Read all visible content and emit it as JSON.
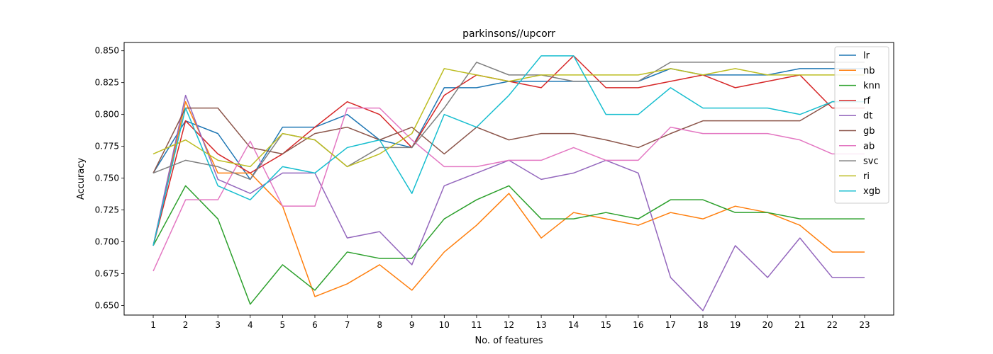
{
  "chart_data": {
    "type": "line",
    "title": "parkinsons//upcorr",
    "xlabel": "No. of features",
    "ylabel": "Accuracy",
    "x": [
      1,
      2,
      3,
      4,
      5,
      6,
      7,
      8,
      9,
      10,
      11,
      12,
      13,
      14,
      15,
      16,
      17,
      18,
      19,
      20,
      21,
      22,
      23
    ],
    "xlim": [
      0.1,
      23.9
    ],
    "ylim": [
      0.6425,
      0.8565
    ],
    "yticks": [
      0.65,
      0.675,
      0.7,
      0.725,
      0.75,
      0.775,
      0.8,
      0.825,
      0.85
    ],
    "ytick_labels": [
      "0.650",
      "0.675",
      "0.700",
      "0.725",
      "0.750",
      "0.775",
      "0.800",
      "0.825",
      "0.850"
    ],
    "grid": false,
    "legend_position": "top-right",
    "series": [
      {
        "name": "lr",
        "color": "#1f77b4",
        "values": [
          0.754,
          0.795,
          0.785,
          0.749,
          0.79,
          0.79,
          0.8,
          0.78,
          0.774,
          0.821,
          0.821,
          0.826,
          0.826,
          0.826,
          0.826,
          0.826,
          0.836,
          0.831,
          0.831,
          0.831,
          0.836,
          0.836,
          0.836
        ]
      },
      {
        "name": "nb",
        "color": "#ff7f0e",
        "values": [
          0.697,
          0.81,
          0.754,
          0.754,
          0.728,
          0.657,
          0.667,
          0.682,
          0.662,
          0.692,
          0.713,
          0.738,
          0.703,
          0.723,
          0.718,
          0.713,
          0.723,
          0.718,
          0.728,
          0.723,
          0.713,
          0.692,
          0.692
        ]
      },
      {
        "name": "knn",
        "color": "#2ca02c",
        "values": [
          0.697,
          0.744,
          0.718,
          0.651,
          0.682,
          0.662,
          0.692,
          0.687,
          0.687,
          0.718,
          0.733,
          0.744,
          0.718,
          0.718,
          0.723,
          0.718,
          0.733,
          0.733,
          0.723,
          0.723,
          0.718,
          0.718,
          0.718
        ]
      },
      {
        "name": "rf",
        "color": "#d62728",
        "values": [
          0.697,
          0.795,
          0.769,
          0.754,
          0.769,
          0.79,
          0.81,
          0.8,
          0.774,
          0.815,
          0.831,
          0.826,
          0.821,
          0.846,
          0.821,
          0.821,
          0.826,
          0.831,
          0.821,
          0.826,
          0.831,
          0.805,
          0.805
        ]
      },
      {
        "name": "dt",
        "color": "#9467bd",
        "values": [
          0.697,
          0.815,
          0.749,
          0.738,
          0.754,
          0.754,
          0.703,
          0.708,
          0.682,
          0.744,
          0.754,
          0.764,
          0.749,
          0.754,
          0.764,
          0.754,
          0.672,
          0.646,
          0.697,
          0.672,
          0.703,
          0.672,
          0.672
        ]
      },
      {
        "name": "gb",
        "color": "#8c564b",
        "values": [
          0.754,
          0.805,
          0.805,
          0.774,
          0.769,
          0.785,
          0.79,
          0.78,
          0.79,
          0.769,
          0.79,
          0.78,
          0.785,
          0.785,
          0.78,
          0.774,
          0.785,
          0.795,
          0.795,
          0.795,
          0.795,
          0.81,
          0.81
        ]
      },
      {
        "name": "ab",
        "color": "#e377c2",
        "values": [
          0.677,
          0.733,
          0.733,
          0.779,
          0.728,
          0.728,
          0.805,
          0.805,
          0.78,
          0.759,
          0.759,
          0.764,
          0.764,
          0.774,
          0.764,
          0.764,
          0.79,
          0.785,
          0.785,
          0.785,
          0.78,
          0.769,
          0.769
        ]
      },
      {
        "name": "svc",
        "color": "#7f7f7f",
        "values": [
          0.754,
          0.764,
          0.759,
          0.749,
          0.785,
          0.78,
          0.759,
          0.774,
          0.774,
          0.805,
          0.841,
          0.831,
          0.831,
          0.826,
          0.826,
          0.826,
          0.841,
          0.841,
          0.841,
          0.841,
          0.841,
          0.841,
          0.841
        ]
      },
      {
        "name": "ri",
        "color": "#bcbd22",
        "values": [
          0.769,
          0.78,
          0.764,
          0.759,
          0.785,
          0.78,
          0.759,
          0.769,
          0.785,
          0.836,
          0.831,
          0.826,
          0.831,
          0.831,
          0.831,
          0.831,
          0.836,
          0.831,
          0.836,
          0.831,
          0.831,
          0.831,
          0.831
        ]
      },
      {
        "name": "xgb",
        "color": "#17becf",
        "values": [
          0.697,
          0.805,
          0.744,
          0.733,
          0.759,
          0.754,
          0.774,
          0.78,
          0.738,
          0.8,
          0.79,
          0.815,
          0.846,
          0.846,
          0.8,
          0.8,
          0.821,
          0.805,
          0.805,
          0.805,
          0.8,
          0.81,
          0.81
        ]
      }
    ]
  }
}
